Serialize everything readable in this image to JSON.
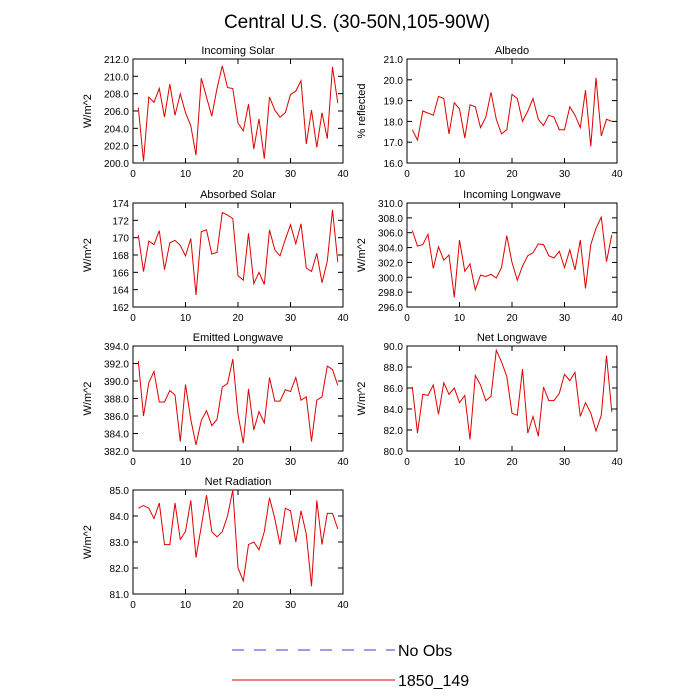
{
  "title": "Central U.S. (30-50N,105-90W)",
  "legend": [
    {
      "label": "No Obs",
      "color": "#3b3bd6",
      "dash": true
    },
    {
      "label": "1850_149",
      "color": "#e00000",
      "dash": false
    }
  ],
  "chart_data": [
    {
      "type": "line",
      "title": "Incoming Solar",
      "ylabel": "W/m^2",
      "xlim": [
        0,
        40
      ],
      "ylim": [
        200,
        212
      ],
      "xticks": [
        0,
        10,
        20,
        30,
        40
      ],
      "yticks": [
        200.0,
        202.0,
        204.0,
        206.0,
        208.0,
        210.0,
        212.0
      ],
      "ytick_labels": [
        "200.0",
        "202.0",
        "204.0",
        "206.0",
        "208.0",
        "210.0",
        "212.0"
      ],
      "xtick_labels": [
        "0",
        "10",
        "20",
        "30",
        "40"
      ],
      "series": [
        {
          "name": "1850_149",
          "x": [
            1,
            2,
            3,
            4,
            5,
            6,
            7,
            8,
            9,
            10,
            11,
            12,
            13,
            14,
            15,
            16,
            17,
            18,
            19,
            20,
            21,
            22,
            23,
            24,
            25,
            26,
            27,
            28,
            29,
            30,
            31,
            32,
            33,
            34,
            35,
            36,
            37,
            38,
            39
          ],
          "values": [
            206.4,
            200.2,
            207.6,
            207.0,
            208.6,
            205.3,
            209.1,
            205.5,
            208.0,
            205.8,
            204.3,
            200.9,
            209.8,
            207.6,
            205.4,
            208.6,
            211.2,
            208.7,
            208.6,
            204.6,
            203.7,
            206.8,
            201.6,
            205.1,
            200.5,
            207.6,
            206.1,
            205.3,
            205.8,
            207.9,
            208.3,
            209.5,
            202.2,
            206.1,
            201.8,
            205.8,
            202.8,
            211.1,
            206.9
          ]
        }
      ]
    },
    {
      "type": "line",
      "title": "Albedo",
      "ylabel": "% reflected",
      "xlim": [
        0,
        40
      ],
      "ylim": [
        16,
        21
      ],
      "xticks": [
        0,
        10,
        20,
        30,
        40
      ],
      "yticks": [
        16.0,
        17.0,
        18.0,
        19.0,
        20.0,
        21.0
      ],
      "ytick_labels": [
        "16.0",
        "17.0",
        "18.0",
        "19.0",
        "20.0",
        "21.0"
      ],
      "xtick_labels": [
        "0",
        "10",
        "20",
        "30",
        "40"
      ],
      "series": [
        {
          "name": "1850_149",
          "x": [
            1,
            2,
            3,
            4,
            5,
            6,
            7,
            8,
            9,
            10,
            11,
            12,
            13,
            14,
            15,
            16,
            17,
            18,
            19,
            20,
            21,
            22,
            23,
            24,
            25,
            26,
            27,
            28,
            29,
            30,
            31,
            32,
            33,
            34,
            35,
            36,
            37,
            38,
            39
          ],
          "values": [
            17.6,
            17.1,
            18.5,
            18.4,
            18.3,
            19.2,
            19.1,
            17.4,
            18.9,
            18.6,
            17.2,
            18.8,
            18.7,
            17.7,
            18.2,
            19.4,
            18.1,
            17.4,
            17.6,
            19.3,
            19.1,
            18.0,
            18.5,
            19.1,
            18.1,
            17.8,
            18.3,
            18.2,
            17.6,
            17.6,
            18.7,
            18.3,
            17.7,
            19.5,
            16.8,
            20.1,
            17.3,
            18.1,
            18.0
          ]
        }
      ]
    },
    {
      "type": "line",
      "title": "Absorbed Solar",
      "ylabel": "W/m^2",
      "xlim": [
        0,
        40
      ],
      "ylim": [
        162,
        174
      ],
      "xticks": [
        0,
        10,
        20,
        30,
        40
      ],
      "yticks": [
        162,
        164,
        166,
        168,
        170,
        172,
        174
      ],
      "ytick_labels": [
        "162",
        "164",
        "166",
        "168",
        "170",
        "172",
        "174"
      ],
      "xtick_labels": [
        "0",
        "10",
        "20",
        "30",
        "40"
      ],
      "series": [
        {
          "name": "1850_149",
          "x": [
            1,
            2,
            3,
            4,
            5,
            6,
            7,
            8,
            9,
            10,
            11,
            12,
            13,
            14,
            15,
            16,
            17,
            18,
            19,
            20,
            21,
            22,
            23,
            24,
            25,
            26,
            27,
            28,
            29,
            30,
            31,
            32,
            33,
            34,
            35,
            36,
            37,
            38,
            39
          ],
          "values": [
            170.3,
            166.1,
            169.6,
            169.2,
            170.8,
            166.3,
            169.4,
            169.7,
            169.1,
            167.9,
            169.9,
            163.4,
            170.7,
            170.9,
            168.1,
            168.3,
            172.9,
            172.6,
            172.2,
            165.6,
            165.1,
            170.5,
            164.7,
            166.0,
            164.6,
            170.9,
            168.6,
            167.9,
            169.8,
            171.5,
            169.3,
            171.6,
            166.5,
            166.1,
            168.2,
            164.8,
            167.3,
            173.2,
            167.2
          ]
        }
      ]
    },
    {
      "type": "line",
      "title": "Incoming Longwave",
      "ylabel": "W/m^2",
      "xlim": [
        0,
        40
      ],
      "ylim": [
        296,
        310
      ],
      "xticks": [
        0,
        10,
        20,
        30,
        40
      ],
      "yticks": [
        296.0,
        298.0,
        300.0,
        302.0,
        304.0,
        306.0,
        308.0,
        310.0
      ],
      "ytick_labels": [
        "296.0",
        "298.0",
        "300.0",
        "302.0",
        "304.0",
        "306.0",
        "308.0",
        "310.0"
      ],
      "xtick_labels": [
        "0",
        "10",
        "20",
        "30",
        "40"
      ],
      "series": [
        {
          "name": "1850_149",
          "x": [
            1,
            2,
            3,
            4,
            5,
            6,
            7,
            8,
            9,
            10,
            11,
            12,
            13,
            14,
            15,
            16,
            17,
            18,
            19,
            20,
            21,
            22,
            23,
            24,
            25,
            26,
            27,
            28,
            29,
            30,
            31,
            32,
            33,
            34,
            35,
            36,
            37,
            38,
            39
          ],
          "values": [
            306.3,
            304.2,
            304.4,
            305.8,
            301.2,
            304.1,
            302.3,
            303.0,
            297.3,
            305.0,
            300.8,
            301.8,
            298.3,
            300.3,
            300.1,
            300.4,
            299.9,
            301.3,
            305.6,
            302.0,
            299.6,
            301.5,
            302.9,
            303.3,
            304.5,
            304.4,
            302.9,
            302.6,
            303.5,
            301.3,
            303.7,
            301.0,
            305.0,
            298.5,
            304.4,
            306.6,
            308.1,
            302.1,
            305.7
          ]
        }
      ]
    },
    {
      "type": "line",
      "title": "Emitted Longwave",
      "ylabel": "W/m^2",
      "xlim": [
        0,
        40
      ],
      "ylim": [
        382,
        394
      ],
      "xticks": [
        0,
        10,
        20,
        30,
        40
      ],
      "yticks": [
        382.0,
        384.0,
        386.0,
        388.0,
        390.0,
        392.0,
        394.0
      ],
      "ytick_labels": [
        "382.0",
        "384.0",
        "386.0",
        "388.0",
        "390.0",
        "392.0",
        "394.0"
      ],
      "xtick_labels": [
        "0",
        "10",
        "20",
        "30",
        "40"
      ],
      "series": [
        {
          "name": "1850_149",
          "x": [
            1,
            2,
            3,
            4,
            5,
            6,
            7,
            8,
            9,
            10,
            11,
            12,
            13,
            14,
            15,
            16,
            17,
            18,
            19,
            20,
            21,
            22,
            23,
            24,
            25,
            26,
            27,
            28,
            29,
            30,
            31,
            32,
            33,
            34,
            35,
            36,
            37,
            38,
            39
          ],
          "values": [
            392.3,
            386.0,
            389.8,
            391.1,
            387.6,
            387.6,
            388.9,
            388.4,
            383.1,
            389.6,
            385.6,
            382.7,
            385.5,
            386.6,
            384.9,
            385.6,
            389.3,
            389.7,
            392.5,
            386.2,
            382.9,
            389.1,
            384.4,
            386.5,
            385.2,
            390.4,
            387.7,
            387.7,
            389.0,
            388.8,
            390.4,
            387.8,
            388.2,
            383.1,
            387.8,
            388.2,
            391.7,
            391.3,
            389.5
          ]
        }
      ]
    },
    {
      "type": "line",
      "title": "Net Longwave",
      "ylabel": "W/m^2",
      "xlim": [
        0,
        40
      ],
      "ylim": [
        80,
        90
      ],
      "xticks": [
        0,
        10,
        20,
        30,
        40
      ],
      "yticks": [
        80.0,
        82.0,
        84.0,
        86.0,
        88.0,
        90.0
      ],
      "ytick_labels": [
        "80.0",
        "82.0",
        "84.0",
        "86.0",
        "88.0",
        "90.0"
      ],
      "xtick_labels": [
        "0",
        "10",
        "20",
        "30",
        "40"
      ],
      "series": [
        {
          "name": "1850_149",
          "x": [
            1,
            2,
            3,
            4,
            5,
            6,
            7,
            8,
            9,
            10,
            11,
            12,
            13,
            14,
            15,
            16,
            17,
            18,
            19,
            20,
            21,
            22,
            23,
            24,
            25,
            26,
            27,
            28,
            29,
            30,
            31,
            32,
            33,
            34,
            35,
            36,
            37,
            38,
            39
          ],
          "values": [
            86.1,
            81.7,
            85.4,
            85.3,
            86.3,
            83.5,
            86.5,
            85.4,
            86.0,
            84.6,
            85.3,
            81.1,
            87.2,
            86.3,
            84.8,
            85.2,
            89.6,
            88.5,
            87.1,
            83.6,
            83.4,
            87.8,
            81.7,
            83.3,
            81.4,
            86.1,
            84.8,
            84.8,
            85.5,
            87.3,
            86.7,
            87.5,
            83.3,
            84.6,
            83.6,
            81.9,
            83.4,
            89.1,
            83.7
          ]
        }
      ]
    },
    {
      "type": "line",
      "title": "Net Radiation",
      "ylabel": "W/m^2",
      "xlim": [
        0,
        40
      ],
      "ylim": [
        81,
        85
      ],
      "xticks": [
        0,
        10,
        20,
        30,
        40
      ],
      "yticks": [
        81.0,
        82.0,
        83.0,
        84.0,
        85.0
      ],
      "ytick_labels": [
        "81.0",
        "82.0",
        "83.0",
        "84.0",
        "85.0"
      ],
      "xtick_labels": [
        "0",
        "10",
        "20",
        "30",
        "40"
      ],
      "series": [
        {
          "name": "1850_149",
          "x": [
            1,
            2,
            3,
            4,
            5,
            6,
            7,
            8,
            9,
            10,
            11,
            12,
            13,
            14,
            15,
            16,
            17,
            18,
            19,
            20,
            21,
            22,
            23,
            24,
            25,
            26,
            27,
            28,
            29,
            30,
            31,
            32,
            33,
            34,
            35,
            36,
            37,
            38,
            39
          ],
          "values": [
            84.3,
            84.4,
            84.3,
            83.9,
            84.5,
            82.9,
            82.9,
            84.5,
            83.1,
            83.4,
            84.6,
            82.4,
            83.6,
            84.8,
            83.4,
            83.2,
            83.4,
            84.0,
            85.0,
            82.0,
            81.5,
            82.9,
            83.0,
            82.7,
            83.4,
            84.7,
            83.9,
            82.9,
            84.3,
            84.2,
            83.0,
            84.2,
            83.3,
            81.3,
            84.6,
            82.9,
            84.1,
            84.1,
            83.5
          ]
        }
      ]
    }
  ]
}
